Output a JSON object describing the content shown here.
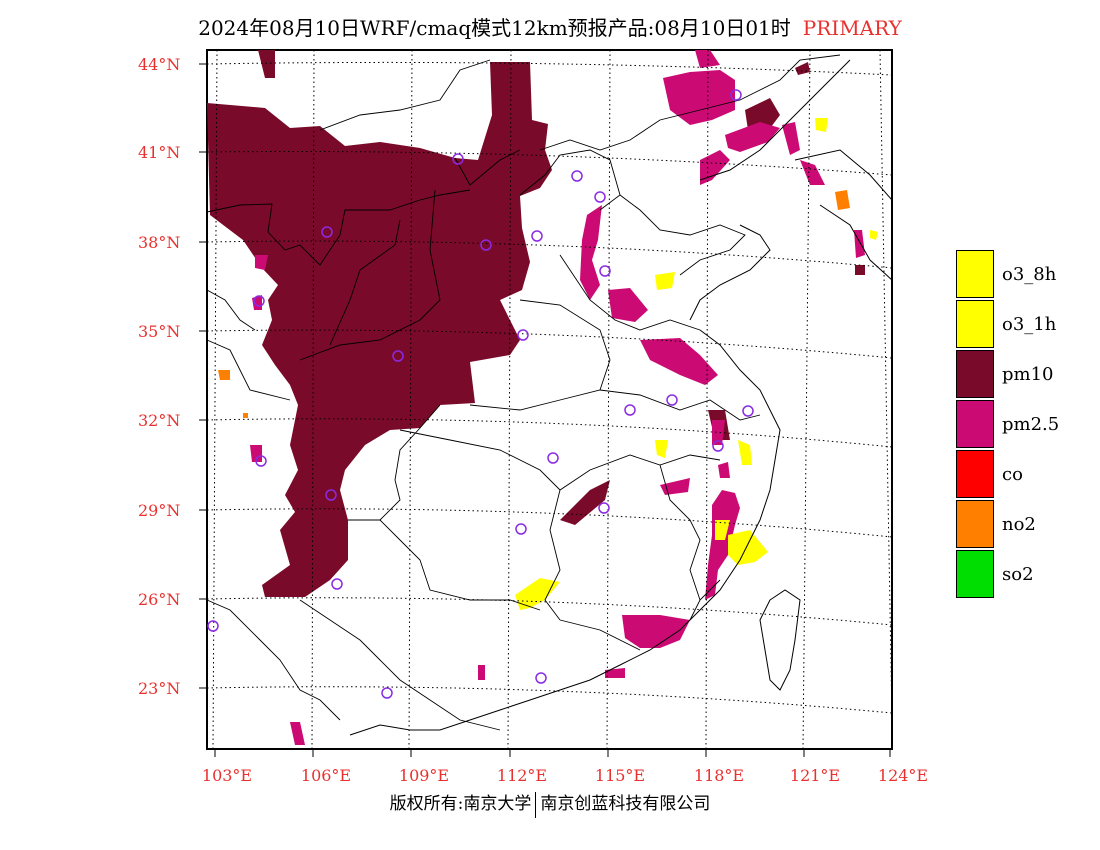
{
  "title": {
    "main": "2024年08月10日WRF/cmaq模式12km预报产品:08月10日01时",
    "tag": "PRIMARY"
  },
  "lat_labels": [
    "44°N",
    "41°N",
    "38°N",
    "35°N",
    "32°N",
    "29°N",
    "26°N",
    "23°N"
  ],
  "lon_labels": [
    "103°E",
    "106°E",
    "109°E",
    "112°E",
    "115°E",
    "118°E",
    "121°E",
    "124°E"
  ],
  "legend": [
    {
      "label": "o3_8h",
      "color": "#ffff00"
    },
    {
      "label": "o3_1h",
      "color": "#ffff00"
    },
    {
      "label": "pm10",
      "color": "#7a0a2a"
    },
    {
      "label": "pm2.5",
      "color": "#cc0a74"
    },
    {
      "label": "co",
      "color": "#ff0000"
    },
    {
      "label": "no2",
      "color": "#ff7f00"
    },
    {
      "label": "so2",
      "color": "#00dd00"
    }
  ],
  "footer": {
    "left": "版权所有:南京大学",
    "right": "南京创蓝科技有限公司"
  },
  "colors": {
    "pm10": "#7a0a2a",
    "pm25": "#cc0a74",
    "o3": "#ffff00",
    "no2": "#ff7f00",
    "station": "#8a2be2",
    "label": "#e8312f"
  }
}
